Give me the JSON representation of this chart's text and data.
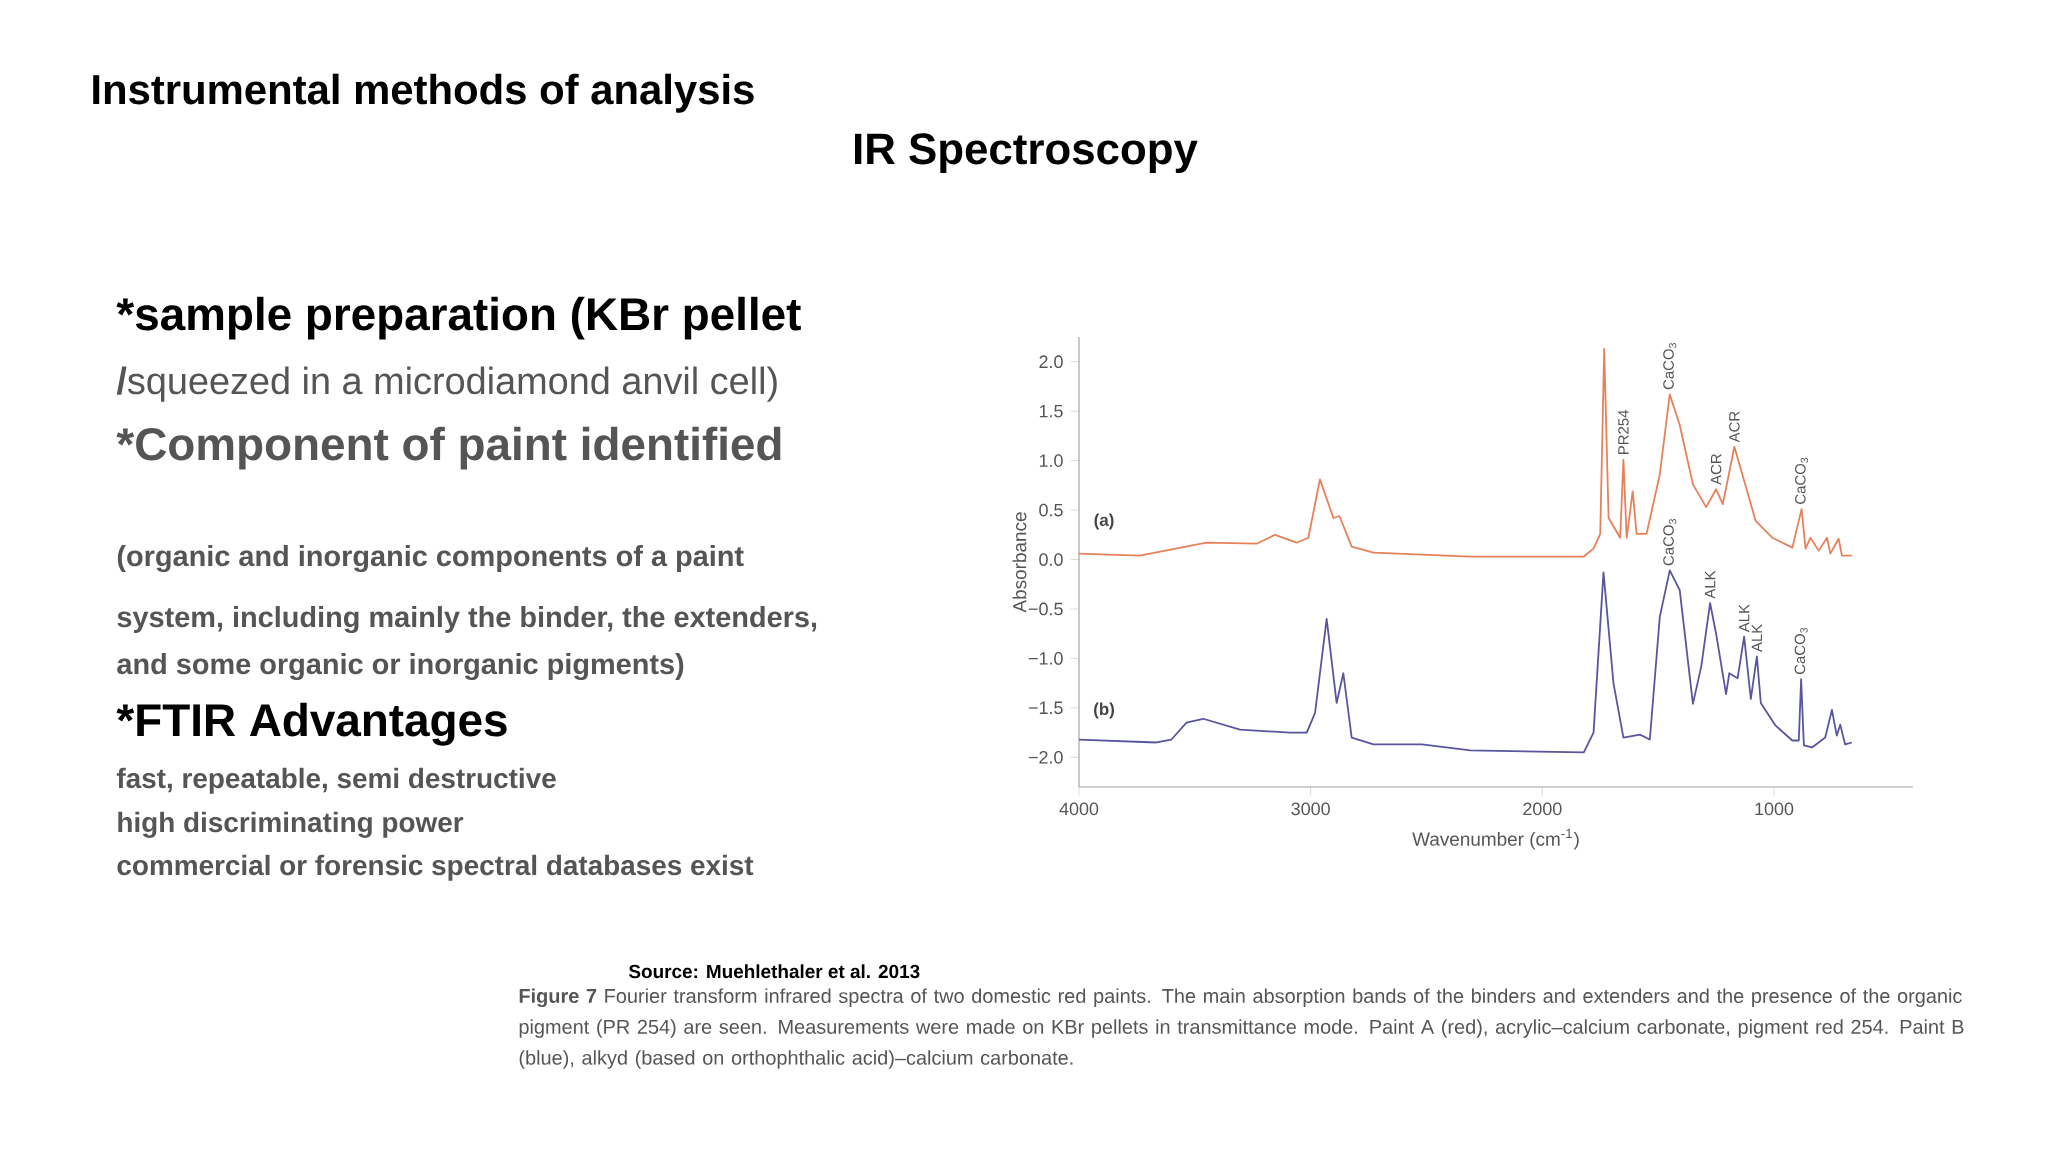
{
  "chart_data": {
    "type": "line",
    "title": "Instrumental methods of analysis",
    "subtitle": "IR Spectroscopy",
    "xlabel": "Wavenumber (cm$^{-1}$)",
    "ylabel": "Absorbance",
    "xlim": [
      4000,
      400
    ],
    "xticks": [
      4000,
      3000,
      2000,
      1000
    ],
    "ylim": [
      -2.3,
      2.25
    ],
    "yticks": [
      {
        "value": -2,
        "label": "−2.0"
      },
      {
        "value": -1.5,
        "label": "−1.5"
      },
      {
        "value": -1,
        "label": "−1.0"
      },
      {
        "value": -0.5,
        "label": "−0.5"
      },
      {
        "value": 0,
        "label": "0.0"
      },
      {
        "value": 0.5,
        "label": "0.5"
      },
      {
        "value": 1,
        "label": "1.0"
      },
      {
        "value": 1.5,
        "label": "1.5"
      },
      {
        "value": 2,
        "label": "2.0"
      }
    ],
    "grid": false,
    "marker": "none",
    "line_style": "solid",
    "series": [
      {
        "color": "#e8805a",
        "x": [
          4000,
          3738,
          3450,
          3233,
          3154,
          3061,
          3010,
          2960,
          2902,
          2876,
          2823,
          2729,
          2311,
          1821,
          1779,
          1750,
          1733,
          1714,
          1664,
          1650,
          1636,
          1610,
          1593,
          1550,
          1493,
          1450,
          1407,
          1350,
          1293,
          1250,
          1221,
          1171,
          1121,
          1079,
          1007,
          921,
          881,
          864,
          843,
          807,
          771,
          757,
          721,
          707,
          664
        ],
        "values": [
          0.06,
          0.04,
          0.17,
          0.16,
          0.25,
          0.17,
          0.22,
          0.81,
          0.42,
          0.44,
          0.13,
          0.07,
          0.03,
          0.03,
          0.11,
          0.26,
          2.13,
          0.42,
          0.22,
          1.01,
          0.22,
          0.69,
          0.26,
          0.26,
          0.86,
          1.67,
          1.36,
          0.76,
          0.53,
          0.71,
          0.56,
          1.14,
          0.73,
          0.39,
          0.22,
          0.12,
          0.51,
          0.11,
          0.22,
          0.09,
          0.22,
          0.06,
          0.21,
          0.04,
          0.04
        ]
      },
      {
        "color": "#5a55a0",
        "x": [
          4000,
          3666,
          3601,
          3536,
          3464,
          3305,
          3089,
          3017,
          2981,
          2931,
          2888,
          2859,
          2823,
          2729,
          2520,
          2311,
          1821,
          1779,
          1736,
          1693,
          1650,
          1579,
          1536,
          1493,
          1450,
          1407,
          1350,
          1314,
          1276,
          1250,
          1207,
          1193,
          1157,
          1129,
          1100,
          1074,
          1057,
          993,
          921,
          893,
          883,
          871,
          836,
          779,
          750,
          729,
          714,
          693,
          664
        ],
        "values": [
          -1.82,
          -1.85,
          -1.82,
          -1.65,
          -1.61,
          -1.72,
          -1.75,
          -1.75,
          -1.55,
          -0.6,
          -1.45,
          -1.15,
          -1.8,
          -1.87,
          -1.87,
          -1.93,
          -1.95,
          -1.75,
          -0.13,
          -1.25,
          -1.8,
          -1.77,
          -1.82,
          -0.58,
          -0.11,
          -0.31,
          -1.46,
          -1.08,
          -0.44,
          -0.75,
          -1.36,
          -1.15,
          -1.2,
          -0.78,
          -1.41,
          -0.98,
          -1.45,
          -1.68,
          -1.83,
          -1.83,
          -1.21,
          -1.88,
          -1.9,
          -1.8,
          -1.52,
          -1.78,
          -1.67,
          -1.87,
          -1.85
        ]
      }
    ],
    "annotations": [
      "*sample preparation (KBr pellet",
      "**/**squeezed in a microdiamond anvil cell)",
      "*Component of paint identified",
      "(organic and inorganic components of a paint",
      "system, including mainly the binder, the extenders,",
      "and some organic or inorganic pigments)",
      "*FTIR Advantages",
      "fast, repeatable, semi destructive",
      "high discriminating power",
      "commercial or forensic spectral databases exist",
      "Source: Muehlethaler et al. 2013",
      "**Figure 7** Fourier transform infrared spectra of two domestic red paints. The main absorption bands of the binders and extenders and the presence of the organic pigment (PR 254) are seen. Measurements were made on KBr pellets in transmittance mode. Paint A (red), acrylic–calcium carbonate, pigment red 254. Paint B (blue), alkyd (based on orthophthalic acid)–calcium carbonate.",
      "(a)",
      "(b)",
      {
        "text": "PR254",
        "x": 1650,
        "y": 1.01
      },
      {
        "text": "CaCO$_{3}$",
        "x": 1450,
        "y": 1.67
      },
      {
        "text": "ACR",
        "x": 1250,
        "y": 0.71
      },
      {
        "text": "ACR",
        "x": 1171,
        "y": 1.14
      },
      {
        "text": "CaCO$_{3}$",
        "x": 881,
        "y": 0.51
      },
      {
        "text": "CaCO$_{3}$",
        "x": 1450,
        "y": -0.11
      },
      {
        "text": "ALK",
        "x": 1276,
        "y": -0.44
      },
      {
        "text": "ALK",
        "x": 1129,
        "y": -0.78
      },
      {
        "text": "ALK",
        "x": 1074,
        "y": -0.98
      },
      {
        "text": "CaCO$_{3}$",
        "x": 883,
        "y": -1.21
      }
    ]
  }
}
